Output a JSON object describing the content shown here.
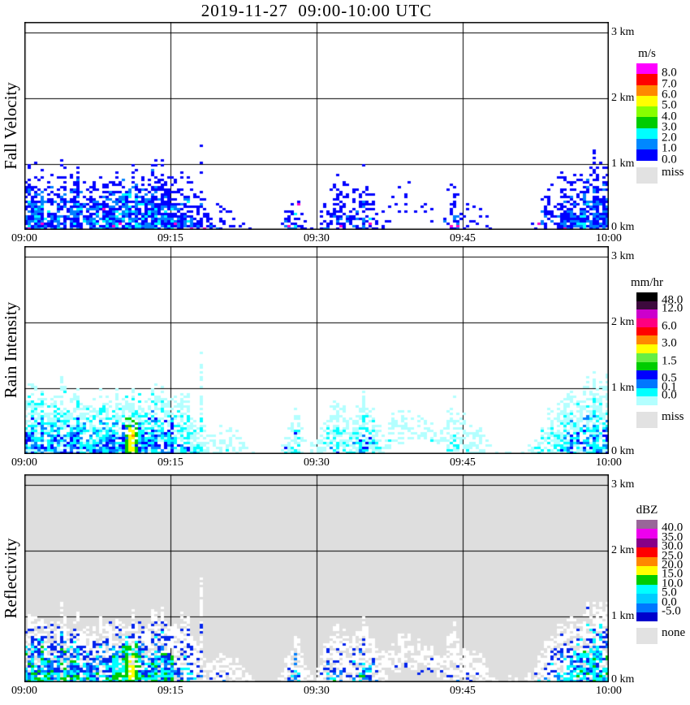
{
  "title": "2019-11-27  09:00-10:00 UTC",
  "chart_data": {
    "type": "heatmap",
    "x_range_utc": [
      "09:00",
      "10:00"
    ],
    "x_ticks": [
      "09:00",
      "09:15",
      "09:30",
      "09:45",
      "10:00"
    ],
    "km_labels": [
      "3 km",
      "2 km",
      "1 km",
      "0 km"
    ],
    "y_range_km": [
      0,
      3.16
    ],
    "grid": "on",
    "seed": 1337,
    "echo_top_km": [
      0.8,
      0.95,
      0.7,
      0.85,
      0.95,
      0.75,
      0.85,
      0.7,
      0.75,
      0.65,
      0.8,
      0.85,
      0.75,
      0.9,
      0.85,
      0.75,
      0.85,
      0.75,
      0.45,
      0.3,
      0.4,
      0.35,
      0.25,
      0.1,
      0,
      0,
      0,
      0.3,
      0.7,
      0.2,
      0.15,
      0.55,
      0.75,
      0.55,
      0.7,
      0.75,
      0.6,
      0.3,
      0.55,
      0.65,
      0.45,
      0.5,
      0.45,
      0.35,
      0.75,
      0.55,
      0.35,
      0.3,
      0.1,
      0,
      0.1,
      0,
      0.15,
      0.4,
      0.55,
      0.7,
      0.75,
      0.8,
      0.9,
      0.95,
      0.9
    ],
    "echo_density": [
      0.85,
      0.85,
      0.85,
      0.85,
      0.85,
      0.85,
      0.85,
      0.85,
      0.85,
      0.85,
      0.85,
      0.88,
      0.85,
      0.85,
      0.85,
      0.8,
      0.75,
      0.7,
      0.45,
      0.3,
      0.35,
      0.3,
      0.25,
      0.15,
      0,
      0,
      0,
      0.45,
      0.55,
      0.25,
      0.15,
      0.45,
      0.55,
      0.45,
      0.55,
      0.55,
      0.45,
      0.25,
      0.3,
      0.35,
      0.25,
      0.3,
      0.25,
      0.25,
      0.35,
      0.3,
      0.25,
      0.2,
      0.1,
      0,
      0.1,
      0,
      0.15,
      0.4,
      0.6,
      0.7,
      0.72,
      0.75,
      0.78,
      0.8,
      0.78
    ],
    "echo_intensity": [
      0.8,
      0.85,
      0.9,
      0.85,
      0.9,
      0.85,
      0.88,
      0.85,
      0.85,
      0.8,
      0.95,
      1.0,
      0.9,
      0.9,
      0.85,
      0.75,
      0.65,
      0.6,
      0.45,
      0.35,
      0.4,
      0.35,
      0.3,
      0.25,
      0,
      0,
      0,
      0.5,
      0.55,
      0.35,
      0.3,
      0.5,
      0.6,
      0.5,
      0.6,
      0.6,
      0.5,
      0.35,
      0.4,
      0.4,
      0.35,
      0.35,
      0.35,
      0.35,
      0.4,
      0.35,
      0.3,
      0.3,
      0.2,
      0,
      0.15,
      0,
      0.2,
      0.45,
      0.55,
      0.6,
      0.65,
      0.75,
      0.8,
      0.7,
      0.65
    ],
    "echo_base_km": [
      0,
      0,
      0,
      0,
      0,
      0,
      0,
      0,
      0,
      0,
      0,
      0,
      0,
      0,
      0,
      0,
      0,
      0,
      0,
      0,
      0,
      0,
      0,
      0,
      0,
      0,
      0,
      0,
      0,
      0,
      0,
      0,
      0,
      0,
      0,
      0,
      0,
      0,
      0.2,
      0.25,
      0.2,
      0.2,
      0.15,
      0.1,
      0,
      0,
      0,
      0,
      0,
      0,
      0,
      0,
      0,
      0,
      0,
      0,
      0,
      0,
      0,
      0,
      0
    ],
    "features": {
      "strong_cell": {
        "time_min": 11.0,
        "t0": 10.2,
        "t1": 11.8,
        "h_max": 0.55
      },
      "tall_spike": {
        "time_min": 18.1,
        "top_km": 1.28
      },
      "late_streak": {
        "t0": 56.5,
        "t1": 59.2,
        "h0": 0.2,
        "h1": 0.95
      }
    },
    "panels": [
      {
        "id": "fall-velocity",
        "ylabel": "Fall Velocity",
        "background": "#ffffff",
        "data_colors": {
          "blue": "#0000ff",
          "dodger": "#0080ff",
          "cyan": "#00ffff",
          "magenta": "#ff00cc"
        },
        "legend": {
          "unit": "m/s",
          "colors": [
            "#ff00ff",
            "#ff0000",
            "#ff8800",
            "#ffff00",
            "#88ff00",
            "#00cc00",
            "#00ffff",
            "#0088ff",
            "#0000ff"
          ],
          "tick_labels": [
            "8.0",
            "7.0",
            "6.0",
            "5.0",
            "4.0",
            "3.0",
            "2.0",
            "1.0",
            "0.0"
          ],
          "tick_pos": [
            1,
            2,
            3,
            4,
            5,
            6,
            7,
            8,
            9
          ],
          "block_h": 13.3,
          "miss_color": "#e2e2e2",
          "miss_label": "miss"
        }
      },
      {
        "id": "rain-intensity",
        "ylabel": "Rain Intensity",
        "background": "#ffffff",
        "data_colors": {
          "pale": "#b3ffff",
          "cyan": "#00ffff",
          "dodger": "#0080ff",
          "blue": "#0000ff",
          "green": "#00cc00",
          "yellow": "#ffff00",
          "orange": "#ff8800"
        },
        "legend": {
          "unit": "mm/hr",
          "colors": [
            "#000000",
            "#3d0a3d",
            "#cc00cc",
            "#ff0080",
            "#ff0000",
            "#ff8800",
            "#ffff00",
            "#66ee44",
            "#00cc00",
            "#0000ff",
            "#0077ff",
            "#00ffff",
            "#b3ffff"
          ],
          "tick_labels": [
            "48.0",
            "12.0",
            "6.0",
            "3.0",
            "1.5",
            "0.5",
            "0.1",
            "0.0"
          ],
          "tick_pos": [
            1,
            2,
            4,
            6,
            8,
            10,
            11,
            12
          ],
          "block_h": 10.7,
          "miss_color": "#e2e2e2",
          "miss_label": "miss"
        }
      },
      {
        "id": "reflectivity",
        "ylabel": "Reflectivity",
        "background": "#dedede",
        "data_colors": {
          "white": "#ffffff",
          "blue": "#0022ee",
          "dodger": "#0080ff",
          "cyan": "#00ffff",
          "green": "#00cc00",
          "yellow": "#ffff00"
        },
        "legend": {
          "unit": "dBZ",
          "colors": [
            "#996699",
            "#ee00ee",
            "#880088",
            "#ff0000",
            "#ff8800",
            "#ffff00",
            "#00cc00",
            "#00ffff",
            "#00ccff",
            "#0077ff",
            "#0000cc"
          ],
          "tick_labels": [
            "40.0",
            "35.0",
            "30.0",
            "25.0",
            "20.0",
            "15.0",
            "10.0",
            "5.0",
            "0.0",
            "-5.0"
          ],
          "tick_pos": [
            1,
            2,
            3,
            4,
            5,
            6,
            7,
            8,
            9,
            10
          ],
          "block_h": 11.4,
          "miss_color": "#e2e2e2",
          "miss_label": "none"
        }
      }
    ]
  }
}
